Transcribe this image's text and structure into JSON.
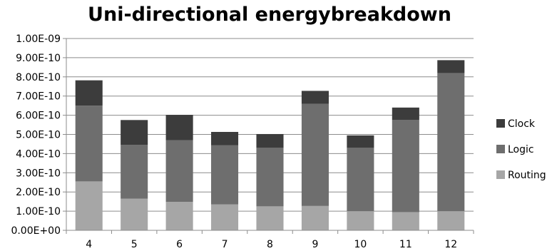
{
  "chart_data": {
    "type": "bar",
    "stacked": true,
    "title": "Uni-directional energybreakdown",
    "xlabel": "",
    "ylabel": "",
    "categories": [
      "4",
      "5",
      "6",
      "7",
      "8",
      "9",
      "10",
      "11",
      "12"
    ],
    "series": [
      {
        "name": "Routing",
        "color": "#a6a6a6",
        "values": [
          2.55e-10,
          1.65e-10,
          1.48e-10,
          1.35e-10,
          1.25e-10,
          1.27e-10,
          1e-10,
          9.5e-11,
          1e-10
        ]
      },
      {
        "name": "Logic",
        "color": "#6e6e6e",
        "values": [
          3.95e-10,
          2.8e-10,
          3.22e-10,
          3.08e-10,
          3.05e-10,
          5.33e-10,
          3.3e-10,
          4.8e-10,
          7.2e-10
        ]
      },
      {
        "name": "Clock",
        "color": "#3c3c3c",
        "values": [
          1.32e-10,
          1.3e-10,
          1.32e-10,
          7e-11,
          7.2e-11,
          6.7e-11,
          6.5e-11,
          6.5e-11,
          6.7e-11
        ]
      }
    ],
    "ylim": [
      0,
      1e-09
    ],
    "yticks": [
      "0.00E+00",
      "1.00E-10",
      "2.00E-10",
      "3.00E-10",
      "4.00E-10",
      "5.00E-10",
      "6.00E-10",
      "7.00E-10",
      "8.00E-10",
      "9.00E-10",
      "1.00E-09"
    ],
    "legend": {
      "position": "right",
      "order": [
        "Clock",
        "Logic",
        "Routing"
      ]
    },
    "grid": true
  }
}
